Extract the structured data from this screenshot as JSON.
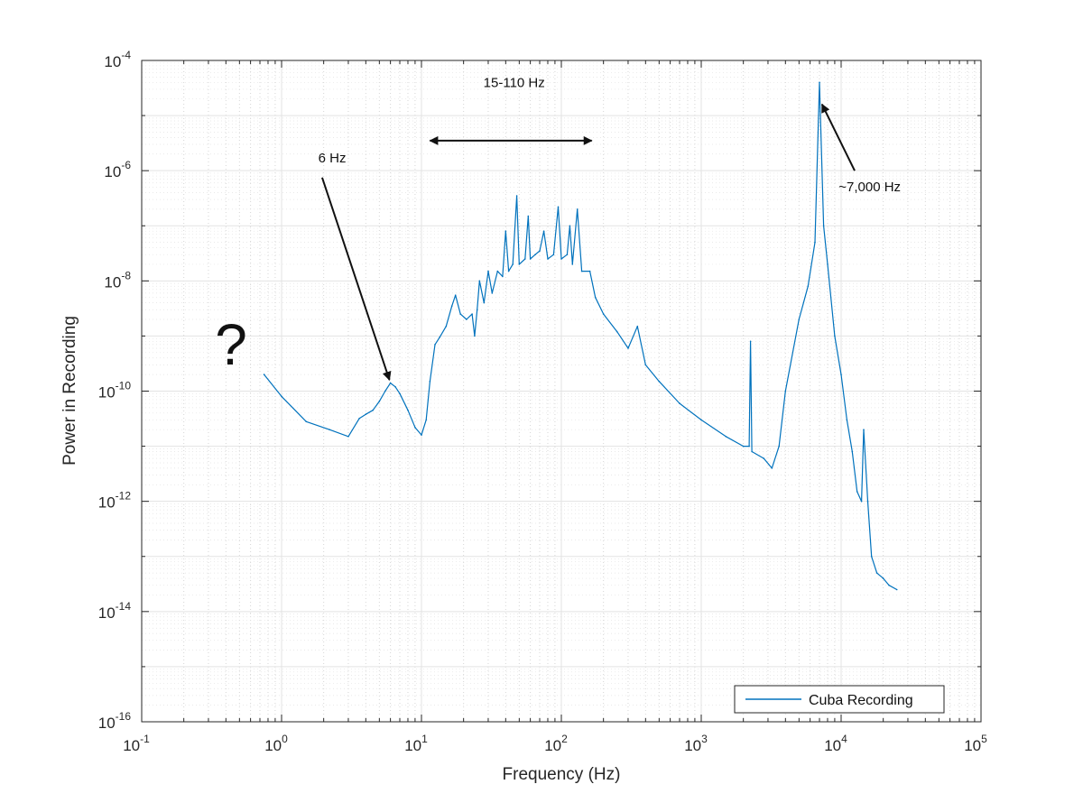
{
  "chart_data": {
    "type": "line",
    "xlabel": "Frequency (Hz)",
    "ylabel": "Power in Recording",
    "x_scale": "log",
    "y_scale": "log",
    "xlim": [
      0.1,
      100000
    ],
    "ylim": [
      1e-16,
      0.0001
    ],
    "grid": true,
    "minor_grid": true,
    "legend_position": "bottom-right",
    "x_ticks": [
      {
        "base": "10",
        "exp": "-1",
        "value": 0.1
      },
      {
        "base": "10",
        "exp": "0",
        "value": 1
      },
      {
        "base": "10",
        "exp": "1",
        "value": 10
      },
      {
        "base": "10",
        "exp": "2",
        "value": 100
      },
      {
        "base": "10",
        "exp": "3",
        "value": 1000
      },
      {
        "base": "10",
        "exp": "4",
        "value": 10000
      },
      {
        "base": "10",
        "exp": "5",
        "value": 100000
      }
    ],
    "y_ticks": [
      {
        "base": "10",
        "exp": "-4",
        "value": 0.0001
      },
      {
        "base": "10",
        "exp": "-6",
        "value": 1e-06
      },
      {
        "base": "10",
        "exp": "-8",
        "value": 1e-08
      },
      {
        "base": "10",
        "exp": "-10",
        "value": 1e-10
      },
      {
        "base": "10",
        "exp": "-12",
        "value": 1e-12
      },
      {
        "base": "10",
        "exp": "-14",
        "value": 1e-14
      },
      {
        "base": "10",
        "exp": "-16",
        "value": 1e-16
      }
    ],
    "series": [
      {
        "name": "Cuba Recording",
        "color": "#0072BD",
        "points": [
          [
            0.75,
            2e-10
          ],
          [
            1.0,
            8e-11
          ],
          [
            1.5,
            2.8e-11
          ],
          [
            2.2,
            2e-11
          ],
          [
            3.0,
            1.5e-11
          ],
          [
            3.6,
            3.2e-11
          ],
          [
            4.0,
            3.8e-11
          ],
          [
            4.5,
            4.5e-11
          ],
          [
            5.0,
            6.5e-11
          ],
          [
            5.5,
            1e-10
          ],
          [
            6.0,
            1.4e-10
          ],
          [
            6.5,
            1.2e-10
          ],
          [
            7.0,
            9e-11
          ],
          [
            8.0,
            4.5e-11
          ],
          [
            9.0,
            2.2e-11
          ],
          [
            10.0,
            1.6e-11
          ],
          [
            10.8,
            3e-11
          ],
          [
            11.5,
            1.5e-10
          ],
          [
            12.5,
            7e-10
          ],
          [
            13.5,
            9.5e-10
          ],
          [
            15.0,
            1.5e-09
          ],
          [
            16.5,
            3.5e-09
          ],
          [
            17.5,
            5.5e-09
          ],
          [
            19.0,
            2.5e-09
          ],
          [
            21.0,
            2e-09
          ],
          [
            23.0,
            2.5e-09
          ],
          [
            24.0,
            1e-09
          ],
          [
            25.0,
            3e-09
          ],
          [
            26.0,
            1e-08
          ],
          [
            28.0,
            4e-09
          ],
          [
            30.0,
            1.5e-08
          ],
          [
            32.0,
            6e-09
          ],
          [
            35.0,
            1.5e-08
          ],
          [
            38.0,
            1.2e-08
          ],
          [
            40.0,
            8e-08
          ],
          [
            42.0,
            1.5e-08
          ],
          [
            45.0,
            2e-08
          ],
          [
            48.0,
            3.5e-07
          ],
          [
            50.0,
            2e-08
          ],
          [
            55.0,
            2.5e-08
          ],
          [
            58.0,
            1.5e-07
          ],
          [
            60.0,
            2.5e-08
          ],
          [
            65.0,
            3e-08
          ],
          [
            70.0,
            3.5e-08
          ],
          [
            75.0,
            8e-08
          ],
          [
            80.0,
            2.5e-08
          ],
          [
            88.0,
            3e-08
          ],
          [
            95.0,
            2.2e-07
          ],
          [
            100.0,
            2.5e-08
          ],
          [
            110.0,
            3e-08
          ],
          [
            115.0,
            1e-07
          ],
          [
            120.0,
            2e-08
          ],
          [
            130.0,
            2e-07
          ],
          [
            140.0,
            1.5e-08
          ],
          [
            160.0,
            1.5e-08
          ],
          [
            175.0,
            5e-09
          ],
          [
            200.0,
            2.5e-09
          ],
          [
            250.0,
            1.2e-09
          ],
          [
            300.0,
            6e-10
          ],
          [
            350.0,
            1.5e-09
          ],
          [
            400.0,
            3e-10
          ],
          [
            500.0,
            1.5e-10
          ],
          [
            700.0,
            6e-11
          ],
          [
            1000.0,
            3e-11
          ],
          [
            1500.0,
            1.5e-11
          ],
          [
            2000.0,
            1e-11
          ],
          [
            2200.0,
            1e-11
          ],
          [
            2250.0,
            8e-10
          ],
          [
            2300.0,
            8e-12
          ],
          [
            2800.0,
            6e-12
          ],
          [
            3200.0,
            4e-12
          ],
          [
            3600.0,
            1e-11
          ],
          [
            4000.0,
            1e-10
          ],
          [
            5000.0,
            2e-09
          ],
          [
            5800.0,
            8e-09
          ],
          [
            6500.0,
            5e-08
          ],
          [
            7000.0,
            4e-05
          ],
          [
            7500.0,
            1e-07
          ],
          [
            8000.0,
            2e-08
          ],
          [
            9000.0,
            1e-09
          ],
          [
            10000.0,
            2e-10
          ],
          [
            11000.0,
            3e-11
          ],
          [
            12000.0,
            8e-12
          ],
          [
            13000.0,
            1.5e-12
          ],
          [
            14000.0,
            1e-12
          ],
          [
            14500.0,
            2e-11
          ],
          [
            15500.0,
            1e-12
          ],
          [
            16500.0,
            1e-13
          ],
          [
            18000.0,
            5e-14
          ],
          [
            20000.0,
            4e-14
          ],
          [
            22000.0,
            3e-14
          ],
          [
            25000.0,
            2.5e-14
          ]
        ]
      }
    ],
    "annotations": [
      {
        "label": "6 Hz",
        "text_x": 2.3,
        "text_y": 1.4e-06,
        "arrow_from": [
          1.95,
          7.5e-07
        ],
        "arrow_to": [
          5.9,
          1.6e-10
        ],
        "arrow_type": "single"
      },
      {
        "label": "15-110 Hz",
        "text_x": 46,
        "text_y": 3.3e-05,
        "arrow_from": [
          11.5,
          3.5e-06
        ],
        "arrow_to": [
          165,
          3.5e-06
        ],
        "arrow_type": "double"
      },
      {
        "label": "~7,000 Hz",
        "text_x": 16000,
        "text_y": 4.2e-07,
        "arrow_from": [
          12500,
          1e-06
        ],
        "arrow_to": [
          7300,
          1.6e-05
        ],
        "arrow_type": "single"
      }
    ],
    "extra_label": "?"
  }
}
